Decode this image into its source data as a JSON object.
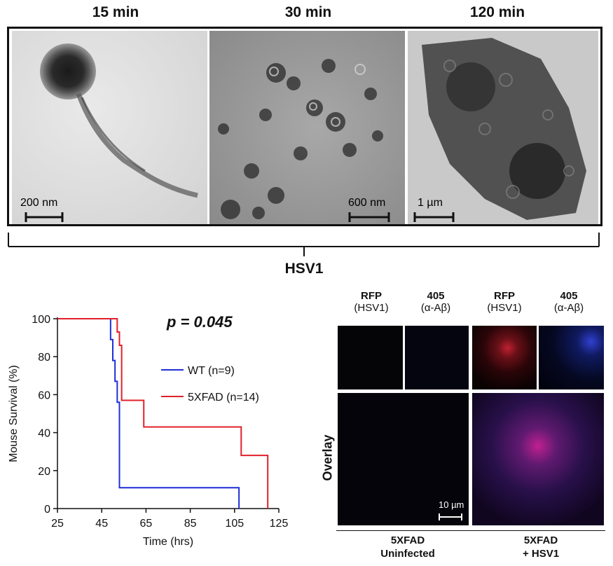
{
  "panelA": {
    "time_labels": [
      "15 min",
      "30 min",
      "120 min"
    ],
    "scale_bars": [
      "200 nm",
      "600 nm",
      "1 µm"
    ],
    "group_label": "HSV1"
  },
  "panelB": {
    "p_value_label": "p = 0.045",
    "chart_data": {
      "type": "line",
      "xlabel": "Time (hrs)",
      "ylabel": "Mouse Survival (%)",
      "xlim": [
        25,
        125
      ],
      "ylim": [
        0,
        100
      ],
      "xticks": [
        25,
        45,
        65,
        85,
        105,
        125
      ],
      "yticks": [
        0,
        20,
        40,
        60,
        80,
        100
      ],
      "legend_position": "right-middle",
      "series": [
        {
          "name": "WT (n=9)",
          "color": "#1f2fd6",
          "step_x": [
            25,
            49,
            49,
            50,
            50,
            51,
            51,
            52,
            52,
            53,
            53,
            107,
            107
          ],
          "step_y": [
            100,
            100,
            89,
            89,
            78,
            78,
            67,
            67,
            56,
            56,
            11,
            11,
            0
          ]
        },
        {
          "name": "5XFAD (n=14)",
          "color": "#e0202a",
          "step_x": [
            25,
            52,
            52,
            53,
            53,
            54,
            54,
            64,
            64,
            108,
            108,
            120,
            120
          ],
          "step_y": [
            100,
            100,
            93,
            93,
            86,
            86,
            57,
            57,
            43,
            43,
            28,
            28,
            0
          ]
        }
      ]
    }
  },
  "panelC": {
    "channels": [
      {
        "name": "RFP",
        "sub": "(HSV1)"
      },
      {
        "name": "405",
        "sub": "(α-Aβ)"
      },
      {
        "name": "RFP",
        "sub": "(HSV1)"
      },
      {
        "name": "405",
        "sub": "(α-Aβ)"
      }
    ],
    "overlay_label": "Overlay",
    "scale_bar": "10 µm",
    "conditions": [
      {
        "line1": "5XFAD",
        "line2": "Uninfected"
      },
      {
        "line1": "5XFAD",
        "line2": "+ HSV1"
      }
    ]
  }
}
